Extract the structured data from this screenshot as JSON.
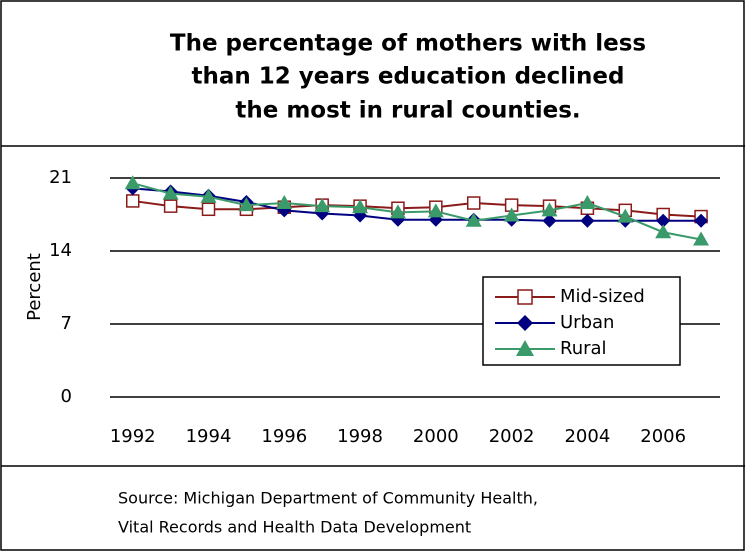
{
  "chart_data": {
    "type": "line",
    "title_lines": [
      "The percentage of mothers with less",
      "than 12 years education declined",
      "the most in rural counties."
    ],
    "y_label": "Percent",
    "x": [
      1992,
      1993,
      1994,
      1995,
      1996,
      1997,
      1998,
      1999,
      2000,
      2001,
      2002,
      2003,
      2004,
      2005,
      2006,
      2007
    ],
    "series": [
      {
        "name": "Mid-sized",
        "color": "#8b1a1a",
        "marker": "square",
        "values": [
          18.8,
          18.3,
          18.0,
          18.0,
          18.2,
          18.4,
          18.3,
          18.1,
          18.2,
          18.6,
          18.4,
          18.3,
          18.1,
          17.9,
          17.5,
          17.3
        ]
      },
      {
        "name": "Urban",
        "color": "#000080",
        "marker": "diamond",
        "values": [
          20.0,
          19.7,
          19.3,
          18.7,
          17.9,
          17.6,
          17.4,
          17.0,
          17.0,
          17.0,
          17.0,
          16.9,
          16.9,
          16.9,
          16.9,
          16.9
        ]
      },
      {
        "name": "Rural",
        "color": "#3a9a6a",
        "marker": "triangle",
        "values": [
          20.5,
          19.5,
          19.2,
          18.4,
          18.6,
          18.3,
          18.2,
          17.7,
          17.8,
          16.9,
          17.4,
          17.9,
          18.6,
          17.3,
          15.8,
          15.1
        ]
      }
    ],
    "xlim": [
      1991.4,
      2007.5
    ],
    "xticks": [
      1992,
      1994,
      1996,
      1998,
      2000,
      2002,
      2004,
      2006
    ],
    "ylim": [
      0,
      21
    ],
    "yticks": [
      0,
      7,
      14,
      21
    ],
    "grid": true,
    "source_lines": [
      "Source: Michigan Department of Community Health,",
      "Vital Records and Health Data Development"
    ]
  }
}
